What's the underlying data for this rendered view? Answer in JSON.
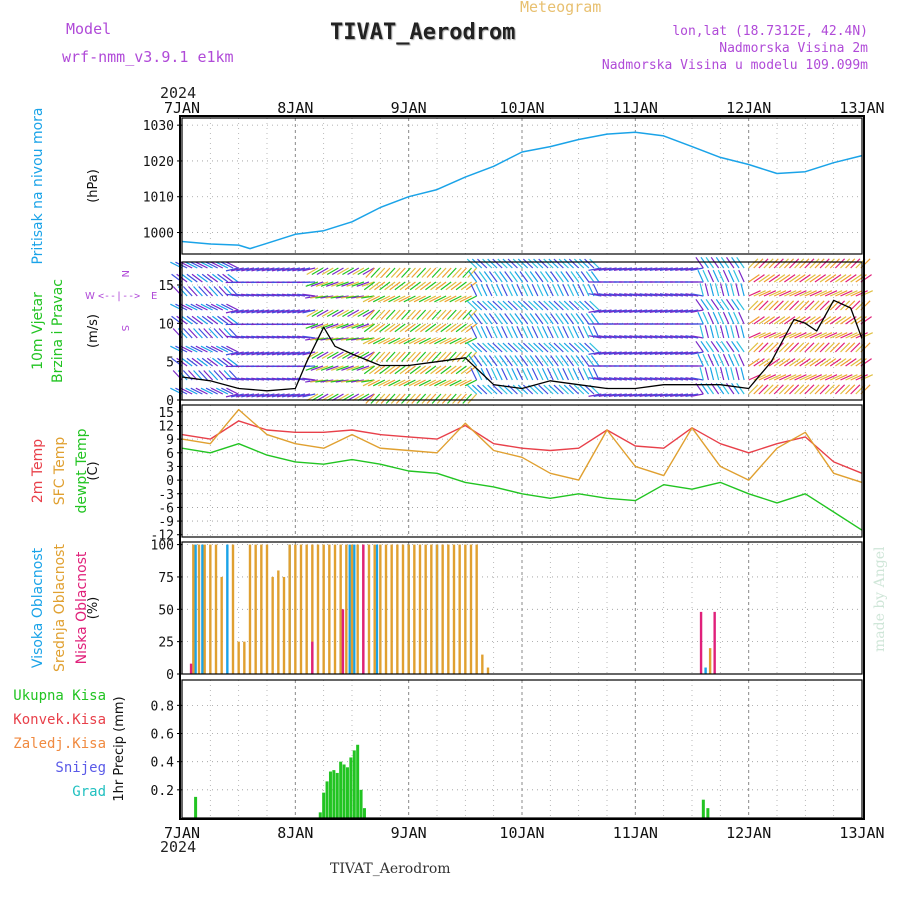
{
  "header": {
    "model_label": "Model",
    "model_name": "wrf-nmm_v3.9.1 e1km",
    "title": "TIVAT_Aerodrom",
    "subtitle": "Meteogram",
    "lonlat": "lon,lat (18.7312E, 42.4N)",
    "elevation": "Nadmorska Visina 2m",
    "model_elevation": "Nadmorska Visina u modelu 109.099m",
    "footer_station": "TIVAT_Aerodrom",
    "watermark": "made by Angel"
  },
  "time_axis": {
    "year": "2024",
    "labels": [
      "7JAN",
      "8JAN",
      "9JAN",
      "10JAN",
      "11JAN",
      "12JAN",
      "13JAN"
    ]
  },
  "colors": {
    "pressure": "#1aa3e8",
    "wind_speed": "#000000",
    "temp2m": "#e8404a",
    "sfc": "#e0a030",
    "dewpt": "#22c422",
    "cloud_high": "#1aa3e8",
    "cloud_mid": "#e0a030",
    "cloud_low": "#e0207a",
    "precip": "#22c422"
  },
  "chart_data": [
    {
      "type": "line",
      "panel": "pressure",
      "ylabel": "(hPa)",
      "side_labels": [
        "Pritisak na nivou mora"
      ],
      "ylim": [
        994,
        1032
      ],
      "yticks": [
        1000,
        1010,
        1020,
        1030
      ],
      "grid": true,
      "x": [
        0,
        0.25,
        0.5,
        0.6,
        0.75,
        1,
        1.25,
        1.5,
        1.75,
        2,
        2.25,
        2.5,
        2.75,
        3,
        3.25,
        3.5,
        3.75,
        4,
        4.25,
        4.5,
        4.75,
        5,
        5.25,
        5.5,
        5.75,
        6
      ],
      "series": [
        {
          "values": [
            997.5,
            996.8,
            996.5,
            995.5,
            997,
            999.5,
            1000.5,
            1003,
            1007,
            1010,
            1012,
            1015.5,
            1018.5,
            1022.5,
            1024,
            1026,
            1027.5,
            1028,
            1027,
            1024,
            1021,
            1019,
            1016.5,
            1017,
            1019.5,
            1021.5
          ]
        }
      ]
    },
    {
      "type": "line",
      "panel": "wind",
      "ylabel": "(m/s)",
      "side_labels": [
        "10m Vjetar",
        "Brzina i Pravac"
      ],
      "compass": {
        "n": "N",
        "s": "S",
        "e": "E",
        "w": "W"
      },
      "ylim": [
        0,
        18
      ],
      "yticks": [
        0,
        5,
        10,
        15
      ],
      "grid": true,
      "x": [
        0,
        0.25,
        0.5,
        0.75,
        1,
        1.1,
        1.25,
        1.35,
        1.5,
        1.75,
        2,
        2.25,
        2.5,
        2.75,
        3,
        3.25,
        3.5,
        3.75,
        4,
        4.25,
        4.5,
        4.75,
        5,
        5.2,
        5.4,
        5.5,
        5.6,
        5.75,
        5.9,
        6
      ],
      "series": [
        {
          "values": [
            3,
            2.5,
            1.5,
            1.2,
            1.5,
            5,
            9.5,
            7,
            6,
            4.5,
            4.5,
            5,
            5.5,
            2,
            1.5,
            2.5,
            2,
            1.5,
            1.5,
            2,
            2,
            2,
            1.5,
            5,
            10.5,
            10,
            9,
            13,
            12,
            8
          ]
        }
      ]
    },
    {
      "type": "line",
      "panel": "temperature",
      "ylabel": "(C)",
      "side_labels": [
        "2m Temp",
        "SFC Temp",
        "dewpt Temp"
      ],
      "ylim": [
        -12.5,
        16.5
      ],
      "yticks": [
        -12,
        -9,
        -6,
        -3,
        0,
        3,
        6,
        9,
        12,
        15
      ],
      "grid": true,
      "x": [
        0,
        0.25,
        0.5,
        0.75,
        1,
        1.25,
        1.5,
        1.75,
        2,
        2.25,
        2.5,
        2.75,
        3,
        3.25,
        3.5,
        3.75,
        4,
        4.25,
        4.5,
        4.75,
        5,
        5.25,
        5.5,
        5.75,
        6
      ],
      "series": [
        {
          "name": "2m Temp",
          "values": [
            10,
            9,
            13,
            11,
            10.5,
            10.5,
            11,
            10,
            9.5,
            9,
            12,
            8,
            7,
            6.5,
            7,
            11,
            7.5,
            7,
            11.5,
            8,
            6,
            8,
            9.5,
            4,
            1.5
          ]
        },
        {
          "name": "SFC Temp",
          "values": [
            9,
            8,
            15.5,
            10,
            8,
            7,
            10,
            7,
            6.5,
            6,
            12.5,
            6.5,
            5,
            1.5,
            0,
            11,
            3,
            1,
            11.5,
            3,
            0,
            7,
            10.5,
            1.5,
            -0.5
          ]
        },
        {
          "name": "dewpt Temp",
          "values": [
            7,
            6,
            8,
            5.5,
            4,
            3.5,
            4.5,
            3.5,
            2,
            1.5,
            -0.5,
            -1.5,
            -3,
            -4,
            -3,
            -4,
            -4.5,
            -1,
            -2,
            -0.5,
            -3,
            -5,
            -3,
            -7,
            -11
          ]
        }
      ]
    },
    {
      "type": "bar",
      "panel": "cloud",
      "ylabel": "(%)",
      "side_labels": [
        "Visoka Oblacnost",
        "Srednja Oblacnost",
        "Niska Oblacnost"
      ],
      "ylim": [
        0,
        102
      ],
      "yticks": [
        0,
        25,
        50,
        75,
        100
      ],
      "grid": true,
      "series": [
        {
          "name": "Visoka Oblacnost",
          "x": [
            0.12,
            0.18,
            0.4,
            0.95,
            1.4,
            1.48,
            1.52,
            1.72,
            2.0,
            2.25,
            4.62
          ],
          "values": [
            100,
            100,
            100,
            100,
            50,
            100,
            100,
            100,
            100,
            100,
            5
          ]
        },
        {
          "name": "Srednja Oblacnost",
          "x": [
            0.1,
            0.15,
            0.2,
            0.25,
            0.3,
            0.35,
            0.45,
            0.5,
            0.55,
            0.6,
            0.65,
            0.7,
            0.75,
            0.8,
            0.85,
            0.9,
            0.95,
            1.0,
            1.05,
            1.1,
            1.15,
            1.2,
            1.25,
            1.3,
            1.35,
            1.4,
            1.45,
            1.5,
            1.55,
            1.6,
            1.65,
            1.7,
            1.75,
            1.8,
            1.85,
            1.9,
            1.95,
            2.0,
            2.05,
            2.1,
            2.15,
            2.2,
            2.25,
            2.3,
            2.35,
            2.4,
            2.45,
            2.5,
            2.55,
            2.6,
            2.65,
            2.7,
            4.66
          ],
          "values": [
            100,
            100,
            100,
            100,
            100,
            75,
            100,
            25,
            25,
            100,
            100,
            100,
            100,
            75,
            80,
            75,
            100,
            100,
            100,
            100,
            100,
            100,
            100,
            100,
            100,
            100,
            100,
            100,
            100,
            100,
            100,
            100,
            100,
            100,
            100,
            100,
            100,
            100,
            100,
            100,
            100,
            100,
            100,
            100,
            100,
            100,
            100,
            100,
            100,
            100,
            15,
            5,
            20
          ]
        },
        {
          "name": "Niska Oblacnost",
          "x": [
            0.08,
            1.15,
            1.42,
            1.6,
            4.58,
            4.7
          ],
          "values": [
            8,
            25,
            50,
            100,
            48,
            48
          ]
        }
      ]
    },
    {
      "type": "bar",
      "panel": "precip",
      "ylabel": "1hr Precip (mm)",
      "side_labels": [
        "Ukupna Kisa",
        "Konvek.Kisa",
        "Zaledj.Kisa",
        "Snijeg",
        "Grad"
      ],
      "ylim": [
        0,
        0.98
      ],
      "yticks": [
        0.2,
        0.4,
        0.6,
        0.8
      ],
      "grid": true,
      "series": [
        {
          "name": "Ukupna Kisa",
          "x": [
            0.12,
            1.22,
            1.25,
            1.28,
            1.31,
            1.34,
            1.37,
            1.4,
            1.43,
            1.46,
            1.49,
            1.52,
            1.55,
            1.58,
            1.61,
            4.6,
            4.64
          ],
          "values": [
            0.15,
            0.04,
            0.18,
            0.26,
            0.33,
            0.34,
            0.32,
            0.4,
            0.38,
            0.36,
            0.43,
            0.48,
            0.52,
            0.2,
            0.07,
            0.13,
            0.07
          ]
        }
      ]
    }
  ]
}
